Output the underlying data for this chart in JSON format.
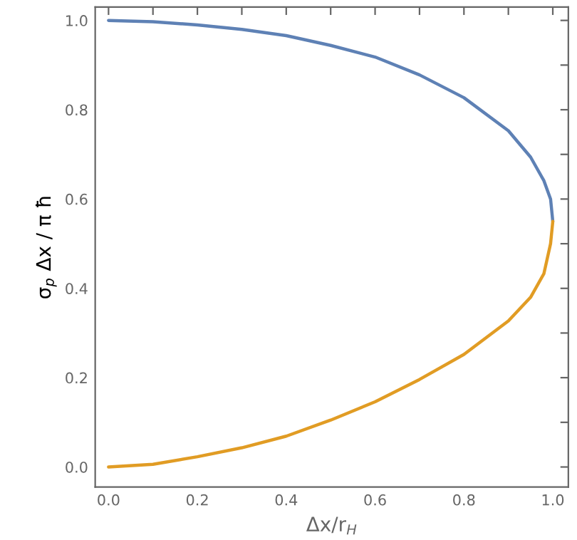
{
  "chart_data": {
    "type": "line",
    "xlabel": "Δx/r$_{H}$",
    "ylabel": "σ$_{p}$ Δx / π ħ",
    "xlim": [
      -0.03,
      1.035
    ],
    "ylim": [
      -0.045,
      1.03
    ],
    "xticks": [
      {
        "value": 0.0,
        "label": "0.0"
      },
      {
        "value": 0.1,
        "label": null
      },
      {
        "value": 0.2,
        "label": "0.2"
      },
      {
        "value": 0.3,
        "label": null
      },
      {
        "value": 0.4,
        "label": "0.4"
      },
      {
        "value": 0.5,
        "label": null
      },
      {
        "value": 0.6,
        "label": "0.6"
      },
      {
        "value": 0.7,
        "label": null
      },
      {
        "value": 0.8,
        "label": "0.8"
      },
      {
        "value": 0.9,
        "label": null
      },
      {
        "value": 1.0,
        "label": "1.0"
      }
    ],
    "yticks": [
      {
        "value": 0.0,
        "label": "0.0"
      },
      {
        "value": 0.1,
        "label": null
      },
      {
        "value": 0.2,
        "label": "0.2"
      },
      {
        "value": 0.3,
        "label": null
      },
      {
        "value": 0.4,
        "label": "0.4"
      },
      {
        "value": 0.5,
        "label": null
      },
      {
        "value": 0.6,
        "label": "0.6"
      },
      {
        "value": 0.7,
        "label": null
      },
      {
        "value": 0.8,
        "label": "0.8"
      },
      {
        "value": 0.9,
        "label": null
      },
      {
        "value": 1.0,
        "label": "1.0"
      }
    ],
    "grid": false,
    "marker": "none",
    "line_style": "solid",
    "series": [
      {
        "color": "#5e81b5",
        "x": [
          0,
          0.1,
          0.2,
          0.3,
          0.4,
          0.5,
          0.6,
          0.7,
          0.8,
          0.9,
          0.95,
          0.98,
          0.995,
          1.0
        ],
        "values": [
          1.0,
          0.997,
          0.99,
          0.98,
          0.966,
          0.944,
          0.918,
          0.878,
          0.827,
          0.753,
          0.694,
          0.641,
          0.6,
          0.55
        ]
      },
      {
        "color": "#e19c24",
        "x": [
          0,
          0.1,
          0.2,
          0.3,
          0.4,
          0.5,
          0.6,
          0.7,
          0.8,
          0.9,
          0.95,
          0.98,
          0.995,
          1.0
        ],
        "values": [
          0.0,
          0.006,
          0.023,
          0.043,
          0.069,
          0.105,
          0.146,
          0.196,
          0.252,
          0.327,
          0.38,
          0.433,
          0.5,
          0.55
        ]
      }
    ]
  }
}
